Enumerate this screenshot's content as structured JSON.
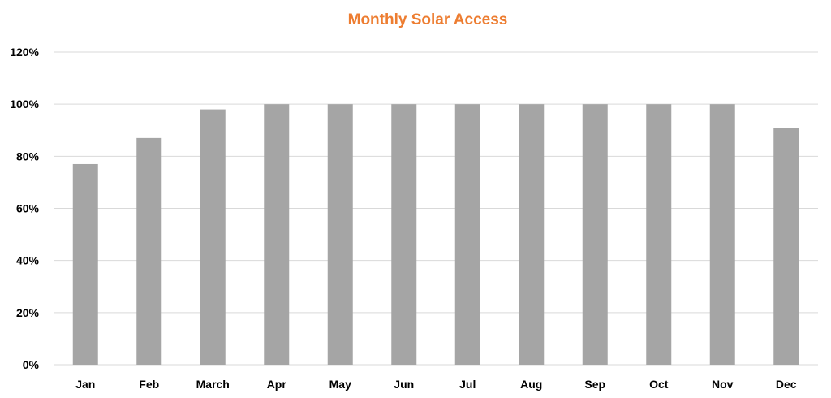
{
  "chart_data": {
    "type": "bar",
    "title": "Monthly Solar Access",
    "xlabel": "",
    "ylabel": "",
    "categories": [
      "Jan",
      "Feb",
      "March",
      "Apr",
      "May",
      "Jun",
      "Jul",
      "Aug",
      "Sep",
      "Oct",
      "Nov",
      "Dec"
    ],
    "values": [
      77,
      87,
      98,
      100,
      100,
      100,
      100,
      100,
      100,
      100,
      100,
      91
    ],
    "ylim": [
      0,
      120
    ],
    "yticks": [
      "0%",
      "20%",
      "40%",
      "60%",
      "80%",
      "100%",
      "120%"
    ],
    "grid": true,
    "legend": "none",
    "colors": {
      "bar": "#a5a5a5",
      "title": "#ed7d31",
      "grid": "#d9d9d9"
    }
  }
}
